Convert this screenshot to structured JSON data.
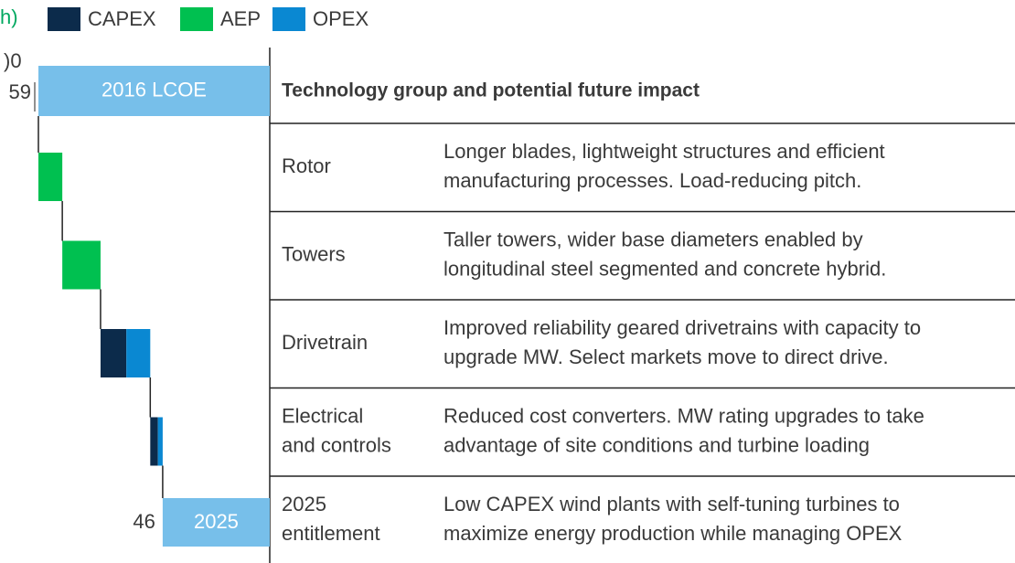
{
  "chart_data": {
    "type": "waterfall",
    "legend_prefix": "h)",
    "axis_top_label": ")0",
    "xlim": [
      59,
      34.8
    ],
    "series": [
      {
        "name": "CAPEX",
        "color": "#0c2b4b",
        "values": [
          null,
          null,
          2.7,
          0.8
        ]
      },
      {
        "name": "AEP",
        "color": "#00c050",
        "values": [
          2.5,
          4.0,
          null,
          null
        ]
      },
      {
        "name": "OPEX",
        "color": "#0a88d2",
        "values": [
          null,
          null,
          2.5,
          0.5
        ]
      }
    ],
    "start": {
      "label": "2016 LCOE",
      "value": 59,
      "color": "#77bfea"
    },
    "end": {
      "label": "2025",
      "value": 46,
      "color": "#77bfea"
    }
  },
  "table": {
    "header": "Technology group and potential future impact",
    "rows": [
      [
        [
          "Rotor"
        ],
        [
          "Longer blades, lightweight structures and efficient",
          "manufacturing processes.  Load-reducing pitch."
        ]
      ],
      [
        [
          "Towers"
        ],
        [
          "Taller towers, wider base diameters enabled by",
          "longitudinal steel segmented and concrete hybrid."
        ]
      ],
      [
        [
          "Drivetrain"
        ],
        [
          "Improved reliability geared drivetrains with capacity to",
          "upgrade MW.  Select markets move to direct drive."
        ]
      ],
      [
        [
          "Electrical",
          "and controls"
        ],
        [
          "Reduced cost converters. MW rating upgrades to take",
          "advantage of site conditions and turbine loading"
        ]
      ],
      [
        [
          "2025",
          "entitlement"
        ],
        [
          "Low CAPEX wind plants with self-tuning turbines to",
          "maximize energy production while managing OPEX"
        ]
      ]
    ]
  }
}
